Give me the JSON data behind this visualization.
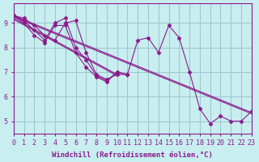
{
  "title": "",
  "xlabel": "Windchill (Refroidissement éolien,°C)",
  "background_color": "#c8eef0",
  "grid_color": "#a0c8d0",
  "line_color": "#8b1a8b",
  "marker_color": "#8b1a8b",
  "xlim": [
    0,
    23
  ],
  "ylim": [
    4.5,
    9.8
  ],
  "yticks": [
    5,
    6,
    7,
    8,
    9
  ],
  "xticks": [
    0,
    1,
    2,
    3,
    4,
    5,
    6,
    7,
    8,
    9,
    10,
    11,
    12,
    13,
    14,
    15,
    16,
    17,
    18,
    19,
    20,
    21,
    22,
    23
  ],
  "series": [
    [
      9.3,
      9.2,
      8.9,
      8.5,
      8.3,
      9.0,
      9.1,
      7.8,
      6.9,
      6.7,
      6.9,
      6.9,
      8.3,
      8.4,
      7.8,
      8.9,
      8.4,
      7.0,
      5.5,
      4.9,
      5.2,
      5.0,
      5.0,
      5.4
    ],
    [
      9.3,
      9.1,
      8.7,
      8.3,
      9.0,
      9.2,
      8.0,
      7.5,
      6.85,
      6.65,
      7.0,
      6.9,
      null,
      null,
      null,
      null,
      null,
      null,
      null,
      null,
      null,
      null,
      null,
      null
    ],
    [
      9.3,
      9.0,
      8.5,
      8.2,
      8.9,
      8.9,
      7.8,
      7.2,
      6.8,
      6.6,
      7.0,
      6.9,
      null,
      null,
      null,
      null,
      null,
      null,
      null,
      null,
      null,
      null,
      null,
      null
    ],
    [
      9.3,
      null,
      null,
      null,
      null,
      null,
      null,
      null,
      null,
      null,
      null,
      null,
      null,
      null,
      null,
      null,
      null,
      null,
      null,
      null,
      null,
      null,
      null,
      5.4
    ],
    [
      9.3,
      null,
      null,
      null,
      null,
      null,
      null,
      null,
      null,
      null,
      null,
      null,
      null,
      null,
      null,
      null,
      null,
      null,
      null,
      null,
      null,
      null,
      null,
      5.2
    ]
  ]
}
